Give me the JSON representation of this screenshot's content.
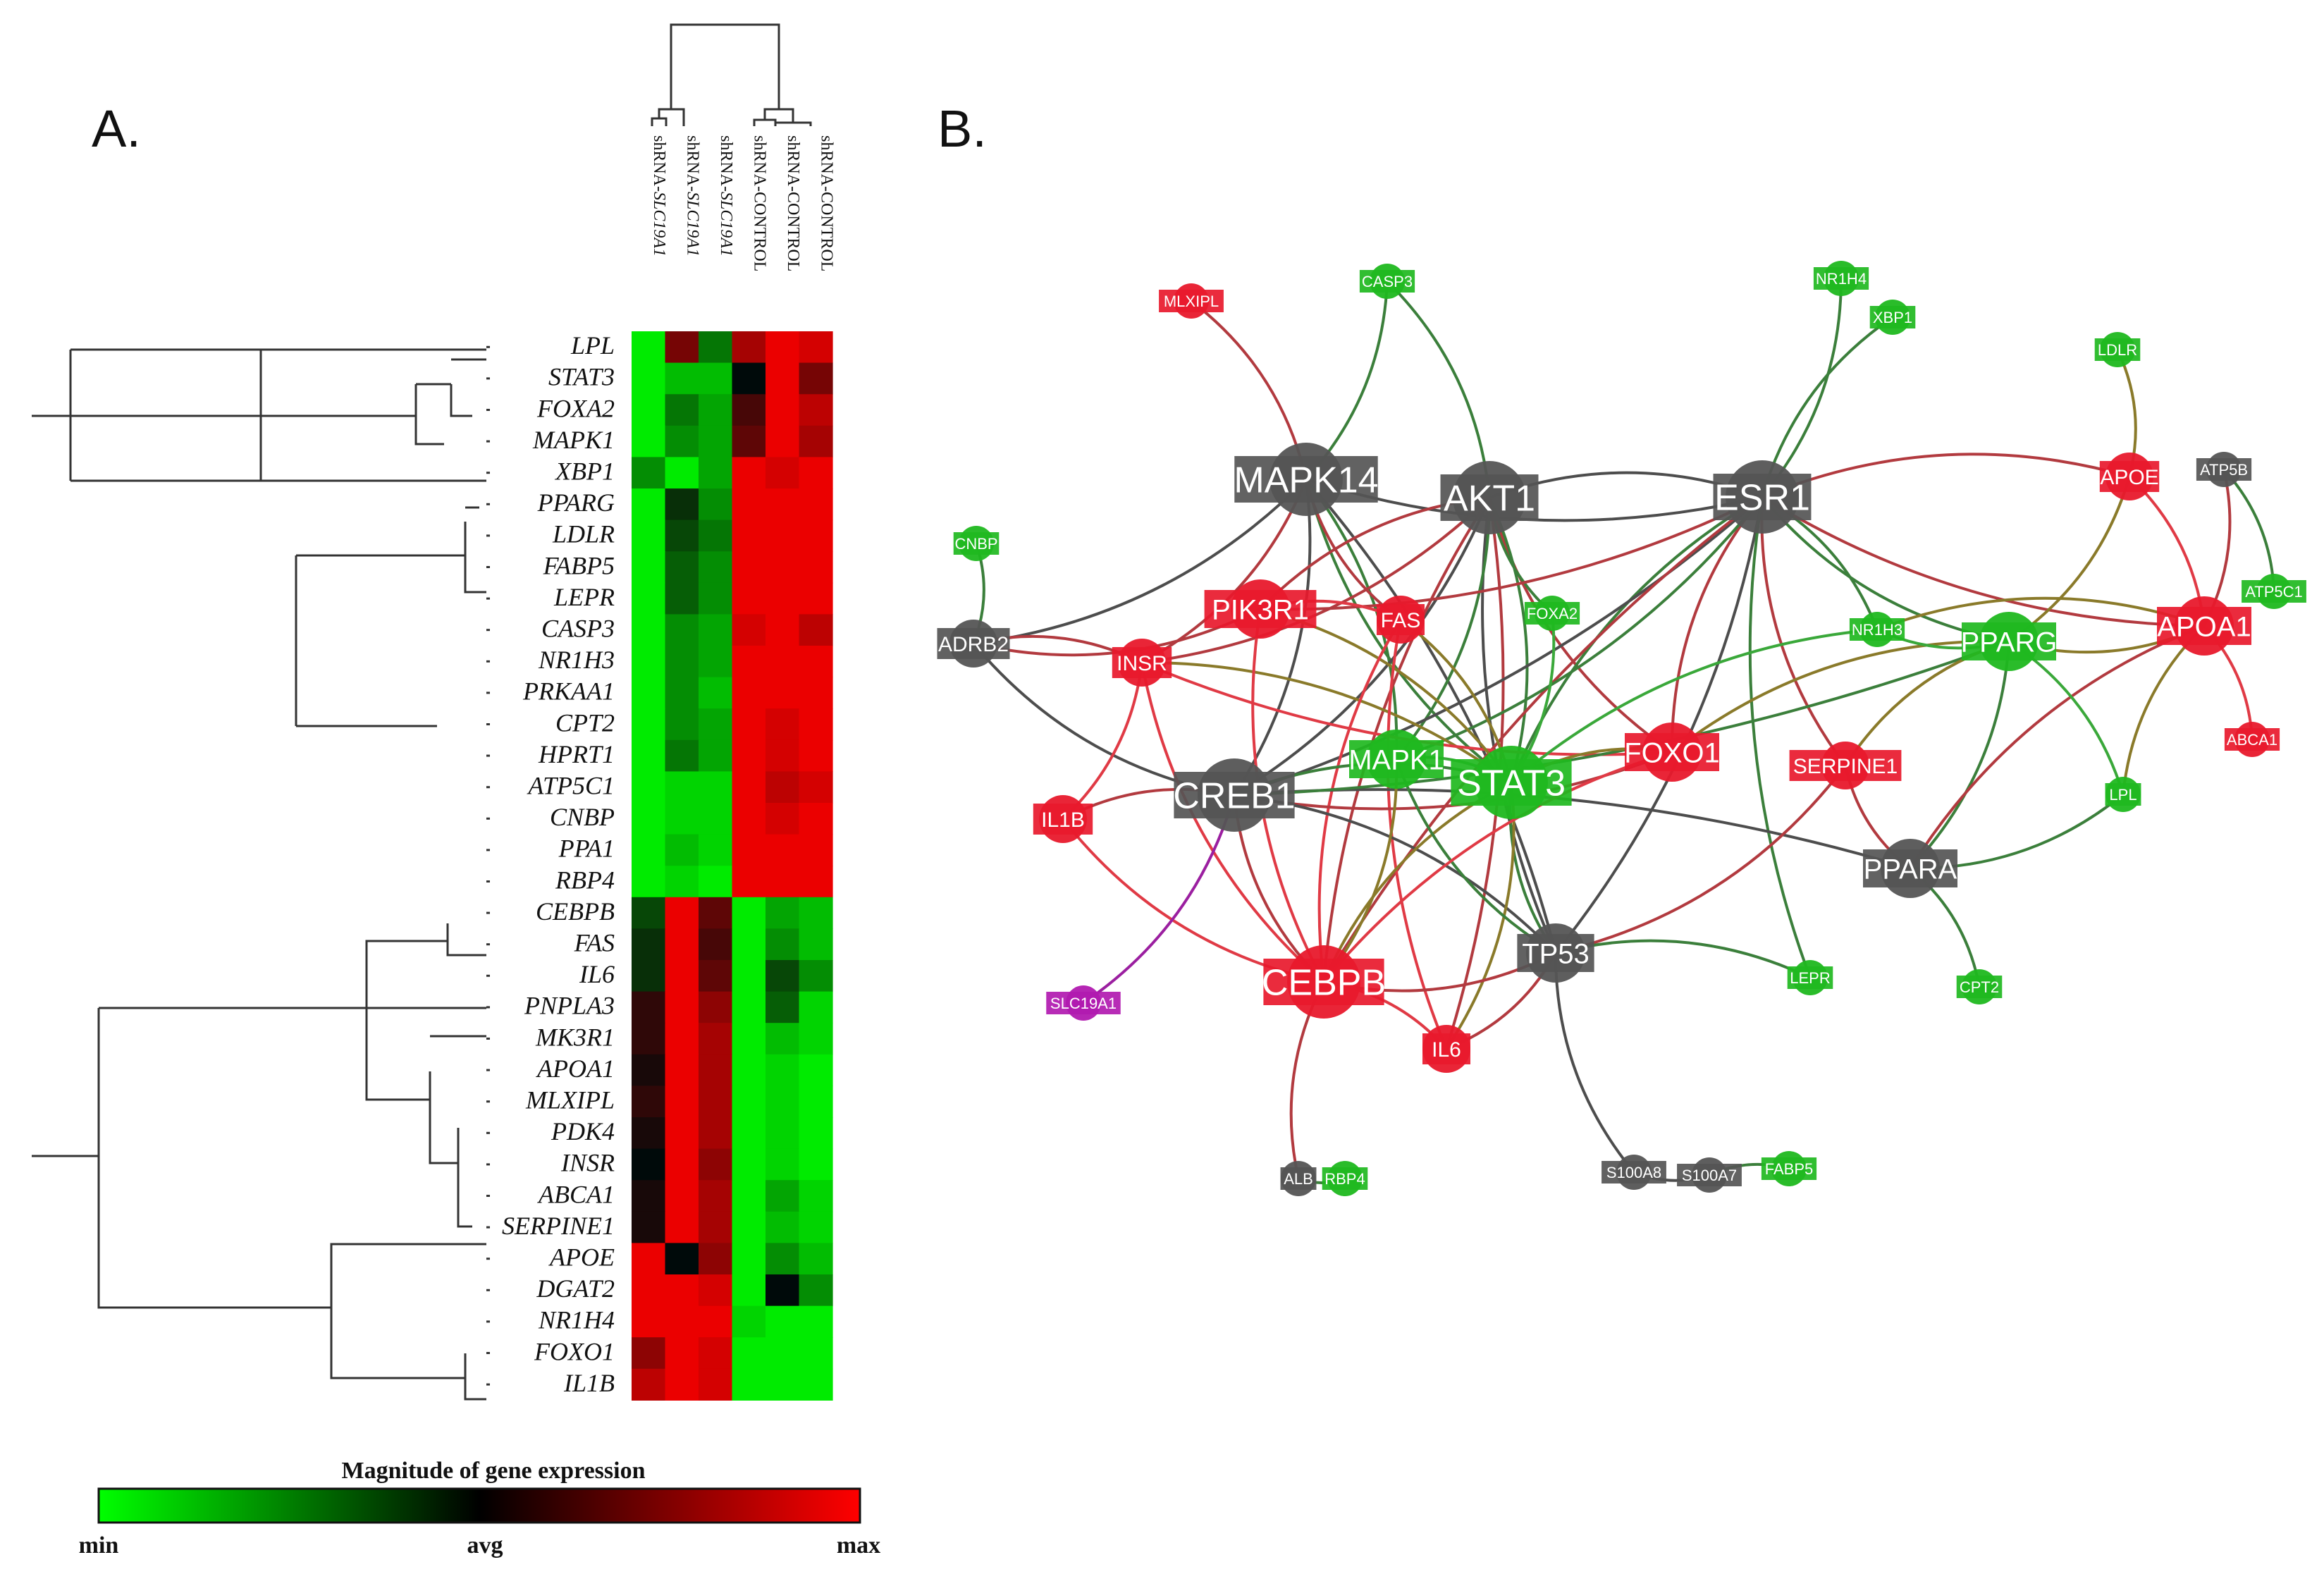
{
  "panels": {
    "a_label": "A.",
    "b_label": "B."
  },
  "heatmap": {
    "columns": [
      {
        "label": "shRNA-",
        "italic": "SLC19A1"
      },
      {
        "label": "shRNA-",
        "italic": "SLC19A1"
      },
      {
        "label": "shRNA-",
        "italic": "SLC19A1"
      },
      {
        "label": "shRNA-CONTROL",
        "italic": ""
      },
      {
        "label": "shRNA-CONTROL",
        "italic": ""
      },
      {
        "label": "shRNA-CONTROL",
        "italic": ""
      }
    ],
    "rows": [
      {
        "gene": "LPL",
        "values": [
          -1,
          0.5,
          -0.5,
          0.7,
          1,
          0.9
        ]
      },
      {
        "gene": "STAT3",
        "values": [
          -1,
          -0.8,
          -0.8,
          0,
          1,
          0.5
        ]
      },
      {
        "gene": "FOXA2",
        "values": [
          -1,
          -0.5,
          -0.7,
          0.3,
          1,
          0.8
        ]
      },
      {
        "gene": "MAPK1",
        "values": [
          -1,
          -0.6,
          -0.7,
          0.4,
          1,
          0.7
        ]
      },
      {
        "gene": "XBP1",
        "values": [
          -0.6,
          -1,
          -0.7,
          1,
          0.9,
          1
        ]
      },
      {
        "gene": "PPARG",
        "values": [
          -1,
          -0.2,
          -0.6,
          1,
          1,
          1
        ]
      },
      {
        "gene": "LDLR",
        "values": [
          -1,
          -0.3,
          -0.5,
          1,
          1,
          1
        ]
      },
      {
        "gene": "FABP5",
        "values": [
          -1,
          -0.4,
          -0.6,
          1,
          1,
          1
        ]
      },
      {
        "gene": "LEPR",
        "values": [
          -1,
          -0.4,
          -0.6,
          1,
          1,
          1
        ]
      },
      {
        "gene": "CASP3",
        "values": [
          -1,
          -0.6,
          -0.7,
          0.9,
          1,
          0.8
        ]
      },
      {
        "gene": "NR1H3",
        "values": [
          -1,
          -0.6,
          -0.7,
          1,
          1,
          1
        ]
      },
      {
        "gene": "PRKAA1",
        "values": [
          -1,
          -0.6,
          -0.8,
          1,
          1,
          1
        ]
      },
      {
        "gene": "CPT2",
        "values": [
          -1,
          -0.6,
          -0.7,
          1,
          0.9,
          1
        ]
      },
      {
        "gene": "HPRT1",
        "values": [
          -1,
          -0.5,
          -0.7,
          1,
          0.9,
          1
        ]
      },
      {
        "gene": "ATP5C1",
        "values": [
          -1,
          -0.9,
          -0.9,
          1,
          0.8,
          0.9
        ]
      },
      {
        "gene": "CNBP",
        "values": [
          -1,
          -0.9,
          -0.9,
          1,
          0.9,
          1
        ]
      },
      {
        "gene": "PPA1",
        "values": [
          -1,
          -0.8,
          -0.9,
          1,
          1,
          1
        ]
      },
      {
        "gene": "RBP4",
        "values": [
          -1,
          -0.9,
          -1,
          1,
          1,
          1
        ]
      },
      {
        "gene": "CEBPB",
        "values": [
          -0.3,
          1,
          0.4,
          -1,
          -0.7,
          -0.8
        ]
      },
      {
        "gene": "FAS",
        "values": [
          -0.2,
          1,
          0.3,
          -1,
          -0.6,
          -0.8
        ]
      },
      {
        "gene": "IL6",
        "values": [
          -0.2,
          1,
          0.4,
          -1,
          -0.3,
          -0.6
        ]
      },
      {
        "gene": "PNPLA3",
        "values": [
          0.2,
          1,
          0.6,
          -1,
          -0.4,
          -0.9
        ]
      },
      {
        "gene": "MK3R1",
        "values": [
          0.2,
          1,
          0.7,
          -1,
          -0.8,
          -0.9
        ]
      },
      {
        "gene": "APOA1",
        "values": [
          0.1,
          1,
          0.7,
          -1,
          -0.9,
          -1
        ]
      },
      {
        "gene": "MLXIPL",
        "values": [
          0.2,
          1,
          0.7,
          -1,
          -0.9,
          -1
        ]
      },
      {
        "gene": "PDK4",
        "values": [
          0.1,
          1,
          0.7,
          -1,
          -0.9,
          -1
        ]
      },
      {
        "gene": "INSR",
        "values": [
          0,
          1,
          0.6,
          -1,
          -0.9,
          -1
        ]
      },
      {
        "gene": "ABCA1",
        "values": [
          0.1,
          1,
          0.7,
          -1,
          -0.7,
          -0.9
        ]
      },
      {
        "gene": "SERPINE1",
        "values": [
          0.1,
          1,
          0.7,
          -1,
          -0.8,
          -0.9
        ]
      },
      {
        "gene": "APOE",
        "values": [
          1,
          0,
          0.6,
          -1,
          -0.6,
          -0.8
        ]
      },
      {
        "gene": "DGAT2",
        "values": [
          1,
          1,
          0.9,
          -1,
          0,
          -0.6
        ]
      },
      {
        "gene": "NR1H4",
        "values": [
          1,
          1,
          1,
          -0.9,
          -1,
          -1
        ]
      },
      {
        "gene": "FOXO1",
        "values": [
          0.6,
          1,
          0.9,
          -1,
          -1,
          -1
        ]
      },
      {
        "gene": "IL1B",
        "values": [
          0.8,
          1,
          0.9,
          -1,
          -1,
          -1
        ]
      }
    ]
  },
  "legend": {
    "title": "Magnitude of gene expression",
    "min": "min",
    "avg": "avg",
    "max": "max"
  },
  "colors": {
    "red": "#e8192c",
    "green": "#1fb81f",
    "gray": "#555555",
    "purple": "#b11ab0"
  },
  "network": {
    "nodes": [
      {
        "id": "MAPK14",
        "label": "MAPK14",
        "color": "gray",
        "size": "L"
      },
      {
        "id": "AKT1",
        "label": "AKT1",
        "color": "gray",
        "size": "L"
      },
      {
        "id": "ESR1",
        "label": "ESR1",
        "color": "gray",
        "size": "L"
      },
      {
        "id": "CREB1",
        "label": "CREB1",
        "color": "gray",
        "size": "L"
      },
      {
        "id": "TP53",
        "label": "TP53",
        "color": "gray",
        "size": "M"
      },
      {
        "id": "PPARA",
        "label": "PPARA",
        "color": "gray",
        "size": "M"
      },
      {
        "id": "ADRB2",
        "label": "ADRB2",
        "color": "gray",
        "size": "S"
      },
      {
        "id": "ATP5B",
        "label": "ATP5B",
        "color": "gray",
        "size": "XS"
      },
      {
        "id": "ALB",
        "label": "ALB",
        "color": "gray",
        "size": "XS"
      },
      {
        "id": "S100A8",
        "label": "S100A8",
        "color": "gray",
        "size": "XS"
      },
      {
        "id": "S100A7",
        "label": "S100A7",
        "color": "gray",
        "size": "XS"
      },
      {
        "id": "PIK3R1",
        "label": "PIK3R1",
        "color": "red",
        "size": "M"
      },
      {
        "id": "FAS",
        "label": "FAS",
        "color": "red",
        "size": "S"
      },
      {
        "id": "INSR",
        "label": "INSR",
        "color": "red",
        "size": "S"
      },
      {
        "id": "IL1B",
        "label": "IL1B",
        "color": "red",
        "size": "S"
      },
      {
        "id": "CEBPB",
        "label": "CEBPB",
        "color": "red",
        "size": "L"
      },
      {
        "id": "IL6",
        "label": "IL6",
        "color": "red",
        "size": "S"
      },
      {
        "id": "FOXO1",
        "label": "FOXO1",
        "color": "red",
        "size": "M"
      },
      {
        "id": "SERPINE1",
        "label": "SERPINE1",
        "color": "red",
        "size": "S"
      },
      {
        "id": "APOE",
        "label": "APOE",
        "color": "red",
        "size": "S"
      },
      {
        "id": "APOA1",
        "label": "APOA1",
        "color": "red",
        "size": "M"
      },
      {
        "id": "ABCA1",
        "label": "ABCA1",
        "color": "red",
        "size": "XS"
      },
      {
        "id": "MLXIPL",
        "label": "MLXIPL",
        "color": "red",
        "size": "XS"
      },
      {
        "id": "CASP3",
        "label": "CASP3",
        "color": "green",
        "size": "XS"
      },
      {
        "id": "NR1H4",
        "label": "NR1H4",
        "color": "green",
        "size": "XS"
      },
      {
        "id": "XBP1",
        "label": "XBP1",
        "color": "green",
        "size": "XS"
      },
      {
        "id": "LDLR",
        "label": "LDLR",
        "color": "green",
        "size": "XS"
      },
      {
        "id": "CNBP",
        "label": "CNBP",
        "color": "green",
        "size": "XS"
      },
      {
        "id": "ATP5C1",
        "label": "ATP5C1",
        "color": "green",
        "size": "XS"
      },
      {
        "id": "FOXA2",
        "label": "FOXA2",
        "color": "green",
        "size": "XS"
      },
      {
        "id": "NR1H3",
        "label": "NR1H3",
        "color": "green",
        "size": "XS"
      },
      {
        "id": "PPARG",
        "label": "PPARG",
        "color": "green",
        "size": "M"
      },
      {
        "id": "MAPK1",
        "label": "MAPK1",
        "color": "green",
        "size": "M"
      },
      {
        "id": "STAT3",
        "label": "STAT3",
        "color": "green",
        "size": "L"
      },
      {
        "id": "LPL",
        "label": "LPL",
        "color": "green",
        "size": "XS"
      },
      {
        "id": "LEPR",
        "label": "LEPR",
        "color": "green",
        "size": "XS"
      },
      {
        "id": "CPT2",
        "label": "CPT2",
        "color": "green",
        "size": "XS"
      },
      {
        "id": "RBP4",
        "label": "RBP4",
        "color": "green",
        "size": "XS"
      },
      {
        "id": "FABP5",
        "label": "FABP5",
        "color": "green",
        "size": "XS"
      },
      {
        "id": "SLC19A1",
        "label": "SLC19A1",
        "color": "purple",
        "size": "XS"
      }
    ],
    "edges": [
      [
        "MAPK14",
        "MLXIPL"
      ],
      [
        "MAPK14",
        "ADRB2"
      ],
      [
        "MAPK14",
        "ESR1"
      ],
      [
        "MAPK14",
        "CREB1"
      ],
      [
        "MAPK14",
        "STAT3"
      ],
      [
        "MAPK14",
        "TP53"
      ],
      [
        "MAPK14",
        "CASP3"
      ],
      [
        "MAPK14",
        "MAPK1"
      ],
      [
        "MAPK14",
        "FAS"
      ],
      [
        "MAPK14",
        "INSR"
      ],
      [
        "AKT1",
        "CASP3"
      ],
      [
        "AKT1",
        "ESR1"
      ],
      [
        "AKT1",
        "FOXO1"
      ],
      [
        "AKT1",
        "STAT3"
      ],
      [
        "AKT1",
        "TP53"
      ],
      [
        "AKT1",
        "CREB1"
      ],
      [
        "AKT1",
        "CEBPB"
      ],
      [
        "AKT1",
        "MAPK1"
      ],
      [
        "AKT1",
        "FOXA2"
      ],
      [
        "AKT1",
        "INSR"
      ],
      [
        "AKT1",
        "PIK3R1"
      ],
      [
        "AKT1",
        "IL6"
      ],
      [
        "ESR1",
        "NR1H4"
      ],
      [
        "ESR1",
        "XBP1"
      ],
      [
        "ESR1",
        "STAT3"
      ],
      [
        "ESR1",
        "CREB1"
      ],
      [
        "ESR1",
        "FOXO1"
      ],
      [
        "ESR1",
        "APOE"
      ],
      [
        "ESR1",
        "PPARG"
      ],
      [
        "ESR1",
        "NR1H3"
      ],
      [
        "ESR1",
        "SERPINE1"
      ],
      [
        "ESR1",
        "TP53"
      ],
      [
        "ESR1",
        "CEBPB"
      ],
      [
        "ESR1",
        "PIK3R1"
      ],
      [
        "ESR1",
        "LEPR"
      ],
      [
        "ESR1",
        "MAPK1"
      ],
      [
        "ESR1",
        "APOA1"
      ],
      [
        "CNBP",
        "ADRB2"
      ],
      [
        "ADRB2",
        "CREB1"
      ],
      [
        "ADRB2",
        "INSR"
      ],
      [
        "ADRB2",
        "PIK3R1"
      ],
      [
        "INSR",
        "IL1B"
      ],
      [
        "INSR",
        "CEBPB"
      ],
      [
        "INSR",
        "STAT3"
      ],
      [
        "INSR",
        "FOXO1"
      ],
      [
        "PIK3R1",
        "STAT3"
      ],
      [
        "PIK3R1",
        "CEBPB"
      ],
      [
        "PIK3R1",
        "FAS"
      ],
      [
        "FAS",
        "CEBPB"
      ],
      [
        "FAS",
        "STAT3"
      ],
      [
        "FAS",
        "IL6"
      ],
      [
        "IL1B",
        "CREB1"
      ],
      [
        "IL1B",
        "CEBPB"
      ],
      [
        "CREB1",
        "SLC19A1"
      ],
      [
        "CREB1",
        "CEBPB"
      ],
      [
        "CREB1",
        "STAT3"
      ],
      [
        "CREB1",
        "FOXO1"
      ],
      [
        "CREB1",
        "PPARA"
      ],
      [
        "CREB1",
        "PPARG"
      ],
      [
        "CREB1",
        "TP53"
      ],
      [
        "STAT3",
        "CEBPB"
      ],
      [
        "STAT3",
        "FOXO1"
      ],
      [
        "STAT3",
        "TP53"
      ],
      [
        "STAT3",
        "IL6"
      ],
      [
        "STAT3",
        "FOXA2"
      ],
      [
        "STAT3",
        "NR1H3"
      ],
      [
        "STAT3",
        "MAPK1"
      ],
      [
        "MAPK1",
        "CEBPB"
      ],
      [
        "MAPK1",
        "TP53"
      ],
      [
        "TP53",
        "CEBPB"
      ],
      [
        "TP53",
        "S100A8"
      ],
      [
        "TP53",
        "IL6"
      ],
      [
        "TP53",
        "SERPINE1"
      ],
      [
        "TP53",
        "LEPR"
      ],
      [
        "FOXO1",
        "CEBPB"
      ],
      [
        "FOXO1",
        "PPARG"
      ],
      [
        "CEBPB",
        "ALB"
      ],
      [
        "CEBPB",
        "IL6"
      ],
      [
        "SERPINE1",
        "PPARA"
      ],
      [
        "SERPINE1",
        "PPARG"
      ],
      [
        "PPARA",
        "PPARG"
      ],
      [
        "PPARA",
        "CPT2"
      ],
      [
        "PPARA",
        "LPL"
      ],
      [
        "PPARA",
        "APOA1"
      ],
      [
        "PPARG",
        "APOE"
      ],
      [
        "PPARG",
        "LPL"
      ],
      [
        "PPARG",
        "APOA1"
      ],
      [
        "PPARG",
        "NR1H3"
      ],
      [
        "APOE",
        "LDLR"
      ],
      [
        "APOE",
        "APOA1"
      ],
      [
        "APOA1",
        "ATP5B"
      ],
      [
        "APOA1",
        "ABCA1"
      ],
      [
        "APOA1",
        "LPL"
      ],
      [
        "ATP5B",
        "ATP5C1"
      ],
      [
        "S100A8",
        "S100A7"
      ],
      [
        "S100A7",
        "FABP5"
      ],
      [
        "ALB",
        "RBP4"
      ],
      [
        "NR1H3",
        "APOA1"
      ]
    ]
  }
}
